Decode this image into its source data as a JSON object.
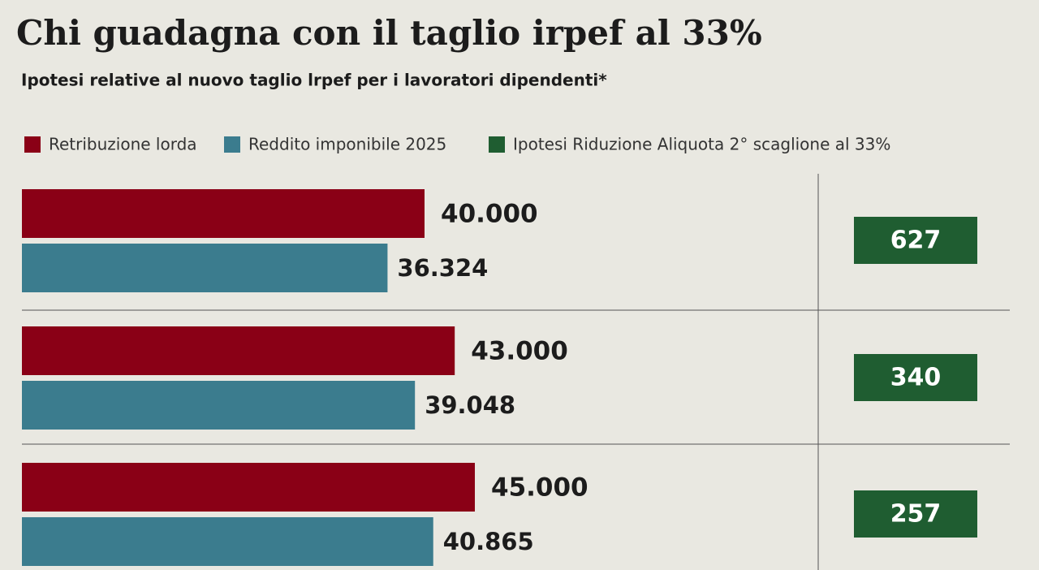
{
  "chart_data": {
    "type": "bar",
    "title": "Chi guadagna con il taglio irpef al 33%",
    "subtitle": "Ipotesi relative al nuovo taglio lrpef per i lavoratori dipendenti*",
    "categories": [
      null,
      null,
      null
    ],
    "series": [
      {
        "name": "Retribuzione lorda",
        "color": "#8a0016",
        "values": [
          40000,
          43000,
          45000
        ],
        "value_labels": [
          "40.000",
          "43.000",
          "45.000"
        ]
      },
      {
        "name": "Reddito imponibile 2025",
        "color": "#3b7c8e",
        "values": [
          36324,
          39048,
          40865
        ],
        "value_labels": [
          "36.324",
          "39.048",
          "40.865"
        ]
      },
      {
        "name": "Ipotesi Riduzione Aliquota 2° scaglione al 33%",
        "color": "#1f5d31",
        "values": [
          627,
          340,
          257
        ]
      }
    ]
  }
}
